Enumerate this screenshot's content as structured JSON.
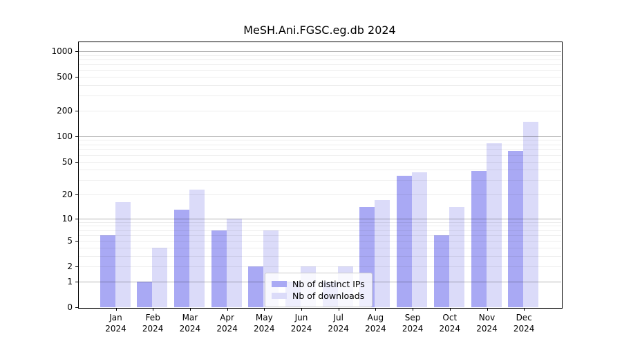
{
  "chart_data": {
    "type": "bar",
    "title": "MeSH.Ani.FGSC.eg.db 2024",
    "year": "2024",
    "categories": [
      "Jan",
      "Feb",
      "Mar",
      "Apr",
      "May",
      "Jun",
      "Jul",
      "Aug",
      "Sep",
      "Oct",
      "Nov",
      "Dec"
    ],
    "series": [
      {
        "name": "Nb of distinct IPs",
        "color": "#a9a9f4",
        "values": [
          6,
          1,
          13,
          7,
          2,
          1,
          1,
          14,
          34,
          6,
          39,
          67
        ]
      },
      {
        "name": "Nb of downloads",
        "color": "#dbdbf9",
        "values": [
          16,
          4,
          23,
          10,
          7,
          2,
          2,
          17,
          37,
          14,
          82,
          147
        ]
      }
    ],
    "yscale": "log1p",
    "ylim": [
      0,
      1300
    ],
    "yticks": [
      0,
      1,
      2,
      5,
      10,
      20,
      50,
      100,
      200,
      500,
      1000
    ],
    "grid_major": [
      1,
      10,
      100,
      1000
    ],
    "grid_minor": [
      2,
      3,
      4,
      5,
      6,
      7,
      8,
      9,
      20,
      30,
      40,
      50,
      60,
      70,
      80,
      90,
      200,
      300,
      400,
      500,
      600,
      700,
      800,
      900
    ],
    "grid": "horizontal",
    "legend_position": "lower-center"
  },
  "legend": {
    "items": [
      {
        "label": "Nb of distinct IPs",
        "color": "#a9a9f4"
      },
      {
        "label": "Nb of downloads",
        "color": "#dbdbf9"
      }
    ]
  }
}
